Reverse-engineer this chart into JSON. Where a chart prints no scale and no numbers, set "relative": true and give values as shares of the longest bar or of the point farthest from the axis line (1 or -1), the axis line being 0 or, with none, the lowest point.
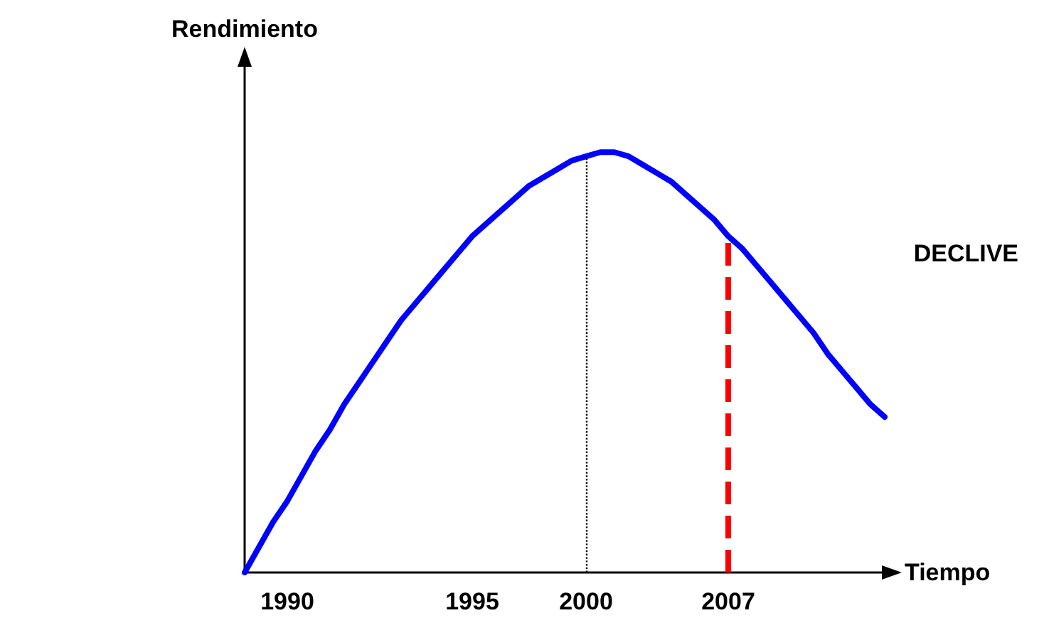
{
  "chart_data": {
    "type": "line",
    "relative": true,
    "xlabel": "Tiempo",
    "ylabel": "Rendimiento",
    "categories": [
      null,
      null,
      null,
      "1990",
      null,
      null,
      null,
      null,
      null,
      null,
      null,
      null,
      null,
      null,
      null,
      null,
      "1995",
      null,
      null,
      null,
      null,
      null,
      null,
      null,
      "2000",
      null,
      null,
      null,
      null,
      null,
      null,
      null,
      null,
      null,
      "2007",
      null,
      null,
      null,
      null,
      null,
      null,
      null,
      null,
      null,
      null,
      null
    ],
    "series": [
      {
        "color": "#0000ff",
        "values": [
          0,
          0.06,
          0.12,
          0.17,
          0.23,
          0.29,
          0.34,
          0.4,
          0.45,
          0.5,
          0.55,
          0.6,
          0.64,
          0.68,
          0.72,
          0.76,
          0.8,
          0.83,
          0.86,
          0.89,
          0.92,
          0.94,
          0.96,
          0.98,
          0.99,
          1,
          1,
          0.99,
          0.97,
          0.95,
          0.93,
          0.9,
          0.87,
          0.84,
          0.8,
          0.77,
          0.73,
          0.69,
          0.65,
          0.61,
          0.57,
          0.52,
          0.48,
          0.44,
          0.4,
          0.37
        ]
      }
    ],
    "ref_lines": [
      {
        "axis": "x",
        "value": "2000",
        "color": "#000000",
        "line_style": "dotted"
      },
      {
        "axis": "x",
        "value": "2007",
        "color": "#ff0000",
        "line_style": "dashed"
      }
    ],
    "annotations": [
      "DECLIVE"
    ],
    "marker": "none",
    "line_style": "solid",
    "grid": false
  }
}
